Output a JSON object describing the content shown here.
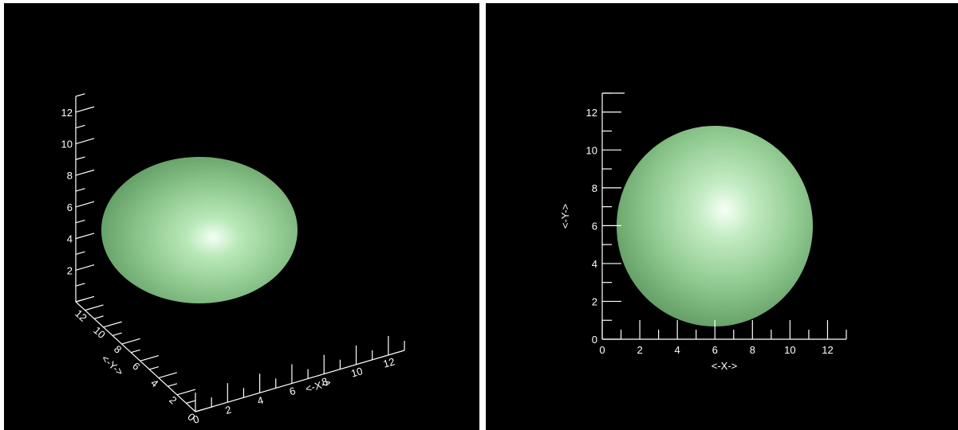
{
  "background_color": "#000000",
  "axis_color": "#ffffff",
  "surface_color": "#8fcf8f",
  "highlight_color": "#f2fff2",
  "views": [
    {
      "name": "perspective-view",
      "x_axis": {
        "title": "<-X->",
        "ticks": [
          "0",
          "2",
          "4",
          "6",
          "8",
          "10",
          "12"
        ],
        "range": [
          0,
          13
        ]
      },
      "y_axis": {
        "title": "<-Y->",
        "ticks": [
          "0",
          "2",
          "4",
          "6",
          "8",
          "10",
          "12"
        ],
        "range": [
          0,
          13
        ]
      },
      "z_axis": {
        "title": "",
        "ticks": [
          "2",
          "4",
          "6",
          "8",
          "10",
          "12"
        ],
        "range": [
          0,
          13
        ]
      }
    },
    {
      "name": "top-view",
      "x_axis": {
        "title": "<-X->",
        "ticks": [
          "0",
          "2",
          "4",
          "6",
          "8",
          "10",
          "12"
        ],
        "range": [
          0,
          13
        ]
      },
      "y_axis": {
        "title": "<-Y->",
        "ticks": [
          "0",
          "2",
          "4",
          "6",
          "8",
          "10",
          "12"
        ],
        "range": [
          0,
          13
        ]
      }
    }
  ]
}
